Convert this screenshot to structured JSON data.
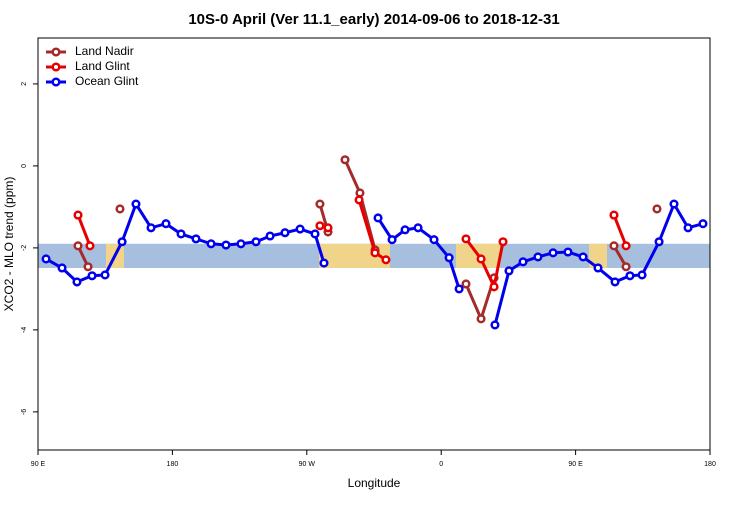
{
  "chart_data": {
    "type": "line",
    "title": "10S-0 April (Ver 11.1_early)   2014-09-06 to 2018-12-31",
    "x_label": "Longitude",
    "y_label": "XCO2 - MLO trend (ppm)",
    "xlim": [
      90,
      540
    ],
    "xticks": [
      {
        "value": 90,
        "label": "90 E"
      },
      180,
      {
        "value": 270,
        "label": "90 W"
      },
      {
        "value": 360,
        "label": "0"
      },
      {
        "value": 450,
        "label": "90 E"
      },
      {
        "value": 540,
        "label": "180"
      }
    ],
    "ylim": [
      -6.93,
      3.12
    ],
    "yticks": [
      -6,
      -4,
      -2,
      0,
      2
    ],
    "band": [
      -2.49,
      -1.9
    ],
    "band_color": "#a7bfdf",
    "land_color": "#fbd77a",
    "legend": "top-left",
    "series": [
      {
        "name": "Land Nadir",
        "color": "#a52a2a",
        "x": [
          116.8,
          123.5,
          null,
          144.9,
          null,
          278.8,
          284.2,
          null,
          295.6,
          305.6,
          315.7,
          null,
          376.6,
          386.7,
          395.4,
          null,
          475.7,
          483.8,
          null,
          504.5
        ],
        "values": [
          -1.95,
          -2.46,
          null,
          -1.05,
          null,
          -0.93,
          -1.61,
          null,
          0.15,
          -0.66,
          -2.05,
          null,
          -2.88,
          -3.73,
          -2.73,
          null,
          -1.95,
          -2.46,
          null,
          -1.05
        ]
      },
      {
        "name": "Land Glint",
        "color": "#e80000",
        "x": [
          116.8,
          124.8,
          null,
          278.8,
          284.2,
          null,
          305.0,
          315.7,
          323.0,
          null,
          376.6,
          386.7,
          395.4,
          401.4,
          null,
          475.7,
          483.8
        ],
        "values": [
          -1.2,
          -1.95,
          null,
          -1.46,
          -1.51,
          null,
          -0.83,
          -2.12,
          -2.29,
          null,
          -1.78,
          -2.27,
          -2.95,
          -1.85,
          null,
          -1.2,
          -1.95
        ]
      },
      {
        "name": "Ocean Glint",
        "color": "#0000ee",
        "x": [
          95.4,
          106.1,
          116.1,
          126.2,
          134.9,
          146.3,
          155.6,
          165.7,
          175.7,
          185.8,
          195.8,
          205.9,
          215.9,
          225.9,
          236.0,
          245.4,
          255.4,
          265.5,
          275.5,
          281.5,
          null,
          317.7,
          327.1,
          335.8,
          344.5,
          355.2,
          365.3,
          372.0,
          null,
          396.0,
          405.4,
          414.8,
          424.8,
          434.9,
          444.9,
          455.0,
          465.0,
          476.4,
          486.4,
          494.5,
          505.9,
          515.9,
          525.3,
          535.3
        ],
        "values": [
          -2.27,
          -2.49,
          -2.83,
          -2.68,
          -2.66,
          -1.85,
          -0.93,
          -1.51,
          -1.41,
          -1.66,
          -1.78,
          -1.9,
          -1.93,
          -1.9,
          -1.85,
          -1.71,
          -1.63,
          -1.54,
          -1.66,
          -2.37,
          null,
          -1.27,
          -1.8,
          -1.56,
          -1.51,
          -1.8,
          -2.24,
          -3.0,
          null,
          -3.88,
          -2.56,
          -2.34,
          -2.22,
          -2.12,
          -2.1,
          -2.22,
          -2.49,
          -2.83,
          -2.68,
          -2.66,
          -1.85,
          -0.93,
          -1.51,
          -1.41
        ]
      }
    ]
  }
}
